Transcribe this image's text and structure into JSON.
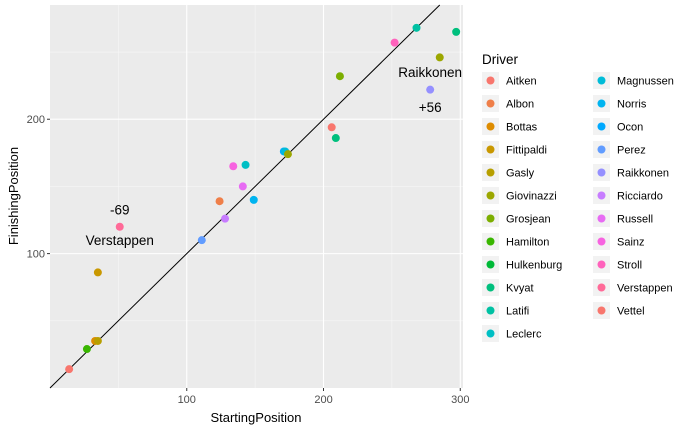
{
  "chart_data": {
    "type": "scatter",
    "xlabel": "StartingPosition",
    "ylabel": "FinishingPosition",
    "xlim": [
      0,
      302
    ],
    "ylim": [
      0,
      285
    ],
    "x_ticks": [
      100,
      200,
      300
    ],
    "y_ticks": [
      100,
      200
    ],
    "grid": true,
    "legend_title": "Driver",
    "legend_position": "right",
    "drivers": [
      {
        "name": "Aitken",
        "color": "#F8766D"
      },
      {
        "name": "Albon",
        "color": "#EF7F49"
      },
      {
        "name": "Bottas",
        "color": "#DE8C00"
      },
      {
        "name": "Fittipaldi",
        "color": "#C99800"
      },
      {
        "name": "Gasly",
        "color": "#B79F00"
      },
      {
        "name": "Giovinazzi",
        "color": "#9CA700"
      },
      {
        "name": "Grosjean",
        "color": "#7CAE00"
      },
      {
        "name": "Hamilton",
        "color": "#39B600"
      },
      {
        "name": "Hulkenburg",
        "color": "#00BA38"
      },
      {
        "name": "Kvyat",
        "color": "#00BF7D"
      },
      {
        "name": "Latifi",
        "color": "#00C1A3"
      },
      {
        "name": "Leclerc",
        "color": "#00BFC4"
      },
      {
        "name": "Magnussen",
        "color": "#00BCD8"
      },
      {
        "name": "Norris",
        "color": "#00B4F0"
      },
      {
        "name": "Ocon",
        "color": "#00A9FF"
      },
      {
        "name": "Perez",
        "color": "#619CFF"
      },
      {
        "name": "Raikkonen",
        "color": "#9590FF"
      },
      {
        "name": "Ricciardo",
        "color": "#C77CFF"
      },
      {
        "name": "Russell",
        "color": "#E76BF3"
      },
      {
        "name": "Sainz",
        "color": "#F763E0"
      },
      {
        "name": "Stroll",
        "color": "#FF62BC"
      },
      {
        "name": "Verstappen",
        "color": "#FF6A98"
      },
      {
        "name": "Vettel",
        "color": "#F8766D"
      }
    ],
    "points": [
      {
        "driver": "Aitken",
        "x": 14,
        "y": 14
      },
      {
        "driver": "Hamilton",
        "x": 27,
        "y": 29
      },
      {
        "driver": "Bottas",
        "x": 33,
        "y": 35
      },
      {
        "driver": "Gasly",
        "x": 35,
        "y": 35
      },
      {
        "driver": "Fittipaldi",
        "x": 35,
        "y": 86
      },
      {
        "driver": "Verstappen",
        "x": 51,
        "y": 120
      },
      {
        "driver": "Perez",
        "x": 111,
        "y": 110
      },
      {
        "driver": "Albon",
        "x": 124,
        "y": 139
      },
      {
        "driver": "Ricciardo",
        "x": 128,
        "y": 126
      },
      {
        "driver": "Sainz",
        "x": 134,
        "y": 165
      },
      {
        "driver": "Russell",
        "x": 141,
        "y": 150
      },
      {
        "driver": "Leclerc",
        "x": 143,
        "y": 166
      },
      {
        "driver": "Norris",
        "x": 149,
        "y": 140
      },
      {
        "driver": "Ocon",
        "x": 171,
        "y": 176
      },
      {
        "driver": "Magnussen",
        "x": 172,
        "y": 176
      },
      {
        "driver": "Giovinazzi",
        "x": 174,
        "y": 174
      },
      {
        "driver": "Vettel",
        "x": 206,
        "y": 194
      },
      {
        "driver": "Kvyat",
        "x": 209,
        "y": 186
      },
      {
        "driver": "Grosjean",
        "x": 212,
        "y": 232
      },
      {
        "driver": "Stroll",
        "x": 252,
        "y": 257
      },
      {
        "driver": "Raikkonen",
        "x": 278,
        "y": 222
      },
      {
        "driver": "Latifi",
        "x": 268,
        "y": 268
      },
      {
        "driver": "Giovinazzi",
        "x": 285,
        "y": 246
      },
      {
        "driver": "Kvyat",
        "x": 297,
        "y": 265
      }
    ],
    "reference_line": {
      "slope": 1,
      "intercept": 0
    },
    "annotations": [
      {
        "text": "-69",
        "x": 51,
        "y": 133
      },
      {
        "text": "Verstappen",
        "x": 51,
        "y": 110
      },
      {
        "text": "Raikkonen",
        "x": 278,
        "y": 235
      },
      {
        "text": "+56",
        "x": 278,
        "y": 209
      }
    ]
  }
}
